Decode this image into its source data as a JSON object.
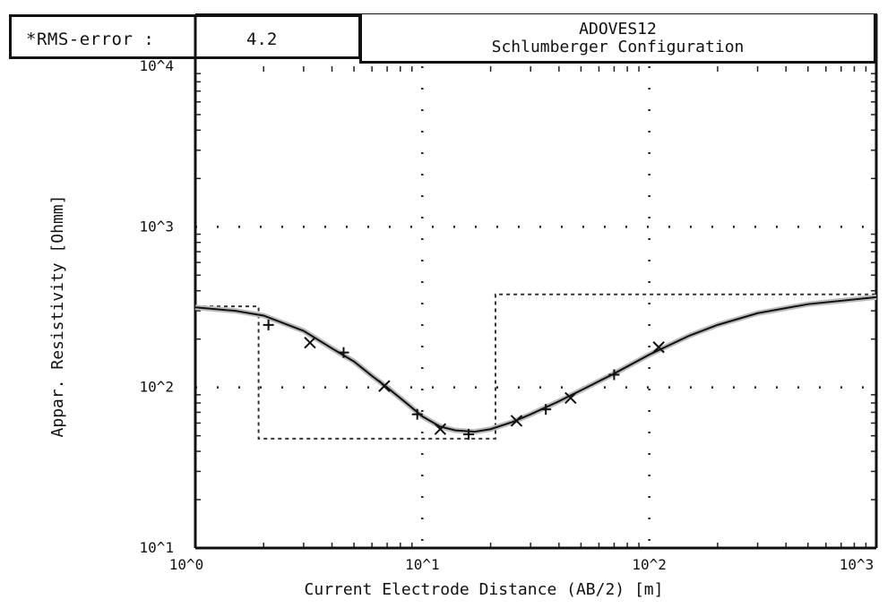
{
  "rms": {
    "label": "*RMS-error :",
    "value": "4.2"
  },
  "title": {
    "line1": "ADOVES12",
    "line2": "Schlumberger Configuration"
  },
  "chart_data": {
    "type": "line",
    "title": "ADOVES12 Schlumberger Configuration",
    "xlabel": "Current Electrode Distance (AB/2) [m]",
    "ylabel": "Appar. Resistivity [Ohmm]",
    "xscale": "log",
    "yscale": "log",
    "xlim": [
      1,
      1000
    ],
    "ylim": [
      10,
      10000
    ],
    "x_ticks": [
      "10^0",
      "10^1",
      "10^2",
      "10^3"
    ],
    "y_ticks": [
      "10^1",
      "10^2",
      "10^3",
      "10^4"
    ],
    "grid": "dotted at decades",
    "series": [
      {
        "style": "observed-markers",
        "points": [
          {
            "x": 2.1,
            "y": 245
          },
          {
            "x": 3.2,
            "y": 190
          },
          {
            "x": 4.5,
            "y": 165
          },
          {
            "x": 6.8,
            "y": 102
          },
          {
            "x": 9.5,
            "y": 68
          },
          {
            "x": 12.0,
            "y": 55
          },
          {
            "x": 16.0,
            "y": 51
          },
          {
            "x": 26.0,
            "y": 62
          },
          {
            "x": 35.0,
            "y": 73
          },
          {
            "x": 45.0,
            "y": 86
          },
          {
            "x": 70.0,
            "y": 120
          },
          {
            "x": 110.0,
            "y": 178
          }
        ]
      },
      {
        "style": "fitted-curve",
        "points": [
          {
            "x": 1.0,
            "y": 315
          },
          {
            "x": 1.5,
            "y": 300
          },
          {
            "x": 2.0,
            "y": 280
          },
          {
            "x": 3.0,
            "y": 225
          },
          {
            "x": 4.0,
            "y": 175
          },
          {
            "x": 5.0,
            "y": 145
          },
          {
            "x": 6.0,
            "y": 118
          },
          {
            "x": 7.0,
            "y": 100
          },
          {
            "x": 8.5,
            "y": 80
          },
          {
            "x": 10.0,
            "y": 66
          },
          {
            "x": 12.0,
            "y": 57
          },
          {
            "x": 14.0,
            "y": 54
          },
          {
            "x": 17.0,
            "y": 53
          },
          {
            "x": 20.0,
            "y": 55
          },
          {
            "x": 25.0,
            "y": 61
          },
          {
            "x": 30.0,
            "y": 68
          },
          {
            "x": 40.0,
            "y": 82
          },
          {
            "x": 50.0,
            "y": 96
          },
          {
            "x": 70.0,
            "y": 122
          },
          {
            "x": 100.0,
            "y": 160
          },
          {
            "x": 150.0,
            "y": 210
          },
          {
            "x": 200.0,
            "y": 245
          },
          {
            "x": 300.0,
            "y": 290
          },
          {
            "x": 500.0,
            "y": 330
          },
          {
            "x": 1000.0,
            "y": 365
          }
        ]
      },
      {
        "style": "layer-model-dotted",
        "points": [
          {
            "x": 1.0,
            "y": 320
          },
          {
            "x": 1.9,
            "y": 320
          },
          {
            "x": 1.9,
            "y": 48
          },
          {
            "x": 21.0,
            "y": 48
          },
          {
            "x": 21.0,
            "y": 380
          },
          {
            "x": 1000.0,
            "y": 380
          }
        ]
      }
    ]
  }
}
